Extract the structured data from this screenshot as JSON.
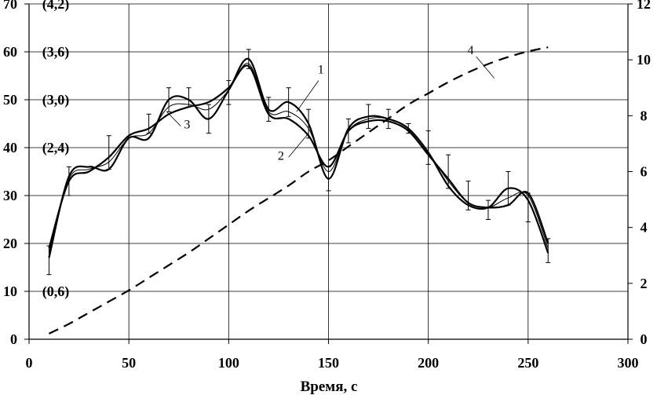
{
  "chart_data": {
    "type": "line",
    "xlabel": "Время, с",
    "xlim": [
      0,
      300
    ],
    "ylim_left": [
      0,
      70
    ],
    "ylim_right": [
      0,
      12
    ],
    "x_ticks": [
      "0",
      "50",
      "100",
      "150",
      "200",
      "250",
      "300"
    ],
    "y_left_ticks": [
      "0",
      "10",
      "20",
      "30",
      "40",
      "50",
      "60",
      "70"
    ],
    "y_right_ticks": [
      "0",
      "2",
      "4",
      "6",
      "8",
      "10",
      "12"
    ],
    "left_annotations": [
      {
        "text": "(4,2)",
        "y": 70
      },
      {
        "text": "(3,6)",
        "y": 60
      },
      {
        "text": "(3,0)",
        "y": 50
      },
      {
        "text": "(2,4)",
        "y": 40
      },
      {
        "text": "(0,6)",
        "y": 10
      }
    ],
    "grid": true,
    "series": [
      {
        "name": "1",
        "axis": "left",
        "x": [
          10,
          20,
          30,
          40,
          50,
          60,
          70,
          80,
          90,
          100,
          110,
          120,
          130,
          140,
          150,
          160,
          170,
          180,
          190,
          200,
          210,
          220,
          230,
          240,
          250,
          260
        ],
        "y": [
          17,
          34,
          36,
          35.5,
          42,
          42,
          50,
          50,
          46,
          52,
          58.5,
          48,
          49.5,
          45,
          33.5,
          44,
          46.5,
          46,
          44,
          39,
          32,
          28,
          27.5,
          31.5,
          29,
          18
        ]
      },
      {
        "name": "2",
        "axis": "left",
        "x": [
          10,
          20,
          30,
          40,
          50,
          60,
          70,
          80,
          90,
          100,
          110,
          120,
          130,
          140,
          150,
          160,
          170,
          180,
          190,
          200,
          210,
          220,
          230,
          240,
          250,
          260
        ],
        "y": [
          19,
          33,
          35,
          38,
          42.5,
          44,
          47,
          48.5,
          49.5,
          52.5,
          57,
          47,
          46,
          42.5,
          36,
          43.5,
          45.5,
          45.5,
          43.5,
          38.5,
          33.5,
          28.5,
          27.5,
          28,
          30.5,
          20
        ]
      },
      {
        "name": "3",
        "axis": "left",
        "x": [
          10,
          20,
          30,
          40,
          50,
          60,
          70,
          80,
          90,
          100,
          110,
          120,
          130,
          140,
          150,
          160,
          170,
          180,
          190,
          200,
          210,
          220,
          230,
          240,
          250,
          260
        ],
        "y": [
          18,
          33.5,
          35.5,
          37,
          42,
          43,
          48.5,
          49,
          48,
          52,
          57.5,
          47.5,
          47.5,
          44,
          35,
          43.5,
          46,
          46,
          44,
          39,
          33,
          28.5,
          27.5,
          29.5,
          30,
          19
        ]
      },
      {
        "name": "4",
        "axis": "right",
        "style": "dashed",
        "x": [
          10,
          20,
          30,
          40,
          50,
          60,
          70,
          80,
          90,
          100,
          110,
          120,
          130,
          140,
          150,
          160,
          170,
          180,
          190,
          200,
          210,
          220,
          230,
          240,
          250,
          260
        ],
        "y": [
          0.2,
          0.55,
          0.95,
          1.35,
          1.75,
          2.2,
          2.65,
          3.1,
          3.6,
          4.1,
          4.6,
          5.05,
          5.5,
          6.0,
          6.4,
          6.9,
          7.4,
          7.9,
          8.4,
          8.8,
          9.2,
          9.55,
          9.85,
          10.1,
          10.3,
          10.45
        ]
      }
    ],
    "error_bars": {
      "x": [
        10,
        20,
        40,
        60,
        70,
        80,
        90,
        100,
        110,
        120,
        130,
        140,
        150,
        160,
        170,
        180,
        190,
        200,
        210,
        220,
        230,
        240,
        250,
        260
      ],
      "y": [
        16.5,
        33,
        39,
        45,
        50,
        50.5,
        46,
        51.5,
        58.5,
        48,
        49.5,
        45,
        33.5,
        43.5,
        46.5,
        46,
        44,
        40,
        35,
        30,
        27,
        31.5,
        27.5,
        18.5
      ],
      "err": [
        3,
        3,
        3.5,
        2,
        2.5,
        2,
        3,
        2.5,
        2,
        2.5,
        3,
        3,
        2.5,
        2.5,
        2.5,
        2,
        1,
        3.5,
        3.5,
        3,
        2,
        3.5,
        3,
        2.5
      ]
    },
    "curve_labels": [
      {
        "text": "1",
        "x": 145,
        "y": 55.5
      },
      {
        "text": "2",
        "x": 125,
        "y": 37.5
      },
      {
        "text": "3",
        "x": 78,
        "y": 44
      },
      {
        "text": "4",
        "x": 220,
        "y": 59.5
      }
    ]
  }
}
